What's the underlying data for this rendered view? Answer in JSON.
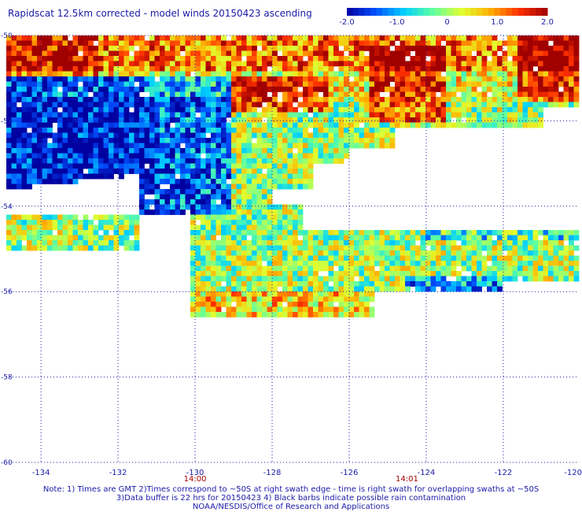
{
  "title": "Rapidscat 12.5km corrected - model winds 20150423 ascending",
  "colorbar": {
    "ticks": [
      "-2.0",
      "-1.0",
      "0",
      "1.0",
      "2.0"
    ],
    "tick_values": [
      -2,
      -1,
      0,
      1,
      2
    ],
    "range": [
      -2,
      2
    ],
    "colors": [
      "#0000a0",
      "#0050ff",
      "#00d0ff",
      "#60ffa0",
      "#e0ff30",
      "#ffb000",
      "#ff3000",
      "#a00000"
    ]
  },
  "map": {
    "lon_labels": [
      "-134",
      "-132",
      "-130",
      "-128",
      "-126",
      "-124",
      "-122",
      "-120"
    ],
    "lon_values": [
      -134,
      -132,
      -130,
      -128,
      -126,
      -124,
      -122,
      -120
    ],
    "lat_labels": [
      "-50",
      "-52",
      "-54",
      "-56",
      "-58",
      "-60"
    ],
    "lat_values": [
      -50,
      -52,
      -54,
      -56,
      -58,
      -60
    ],
    "lon_range": [
      -134.9,
      -120.1
    ],
    "lat_range": [
      -50,
      -60
    ],
    "time_labels": [
      {
        "text": "14:00",
        "lon": -130
      },
      {
        "text": "14:01",
        "lon": -124.5
      }
    ],
    "time_color": "#a00000",
    "grid_color": "#1a1aa8",
    "swath_color_scale": "wind speed difference (corrected - model)"
  },
  "notes": {
    "line1": "Note: 1) Times are GMT 2)Times correspond to ~50S at right swath edge - time is right swath for overlapping swaths at ~50S",
    "line2": "3)Data buffer is 22 hrs for 20150423 4) Black barbs indicate possible rain contamination",
    "line3": "NOAA/NESDIS/Office of Research and Applications"
  }
}
